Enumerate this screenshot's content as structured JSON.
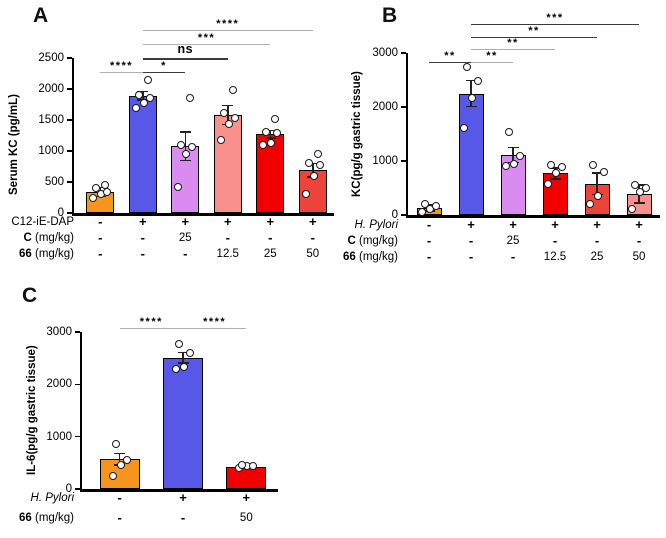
{
  "colors": {
    "background": "#FFFFFF",
    "axis": "#000000",
    "point_fill": "#FFFFFF",
    "point_stroke": "#1A1A1A",
    "error_bar": "#222222",
    "sig_light": "#B0B0B0",
    "sig_dark": "#3C3C3C"
  },
  "chart_data": [
    {
      "type": "bar",
      "panel_label": "A",
      "ylabel": "Serum KC (pg/mL)",
      "ylim": [
        0,
        2500
      ],
      "yticks": [
        0,
        500,
        1000,
        1500,
        2000,
        2500
      ],
      "bars": [
        {
          "value": 340,
          "error": 70,
          "color": "#F7941E",
          "points": [
            240,
            300,
            340,
            410,
            450
          ]
        },
        {
          "value": 1890,
          "error": 70,
          "color": "#5757E8",
          "points": [
            1700,
            1780,
            1860,
            1900,
            2150
          ]
        },
        {
          "value": 1080,
          "error": 230,
          "color": "#D98BEF",
          "points": [
            420,
            950,
            1060,
            1100,
            1860
          ]
        },
        {
          "value": 1580,
          "error": 150,
          "color": "#F9908C",
          "points": [
            1180,
            1440,
            1530,
            1620,
            1990
          ]
        },
        {
          "value": 1270,
          "error": 60,
          "color": "#F20000",
          "points": [
            1100,
            1130,
            1290,
            1310,
            1520
          ]
        },
        {
          "value": 690,
          "error": 110,
          "color": "#EE4338",
          "points": [
            300,
            590,
            780,
            810,
            950
          ]
        }
      ],
      "significance": [
        {
          "from": 0,
          "to": 1,
          "label": "****",
          "level": 4,
          "tone": "light"
        },
        {
          "from": 1,
          "to": 2,
          "label": "*",
          "level": 4,
          "tone": "dark"
        },
        {
          "from": 1,
          "to": 3,
          "label": "ns",
          "level": 3,
          "tone": "dark"
        },
        {
          "from": 1,
          "to": 4,
          "label": "***",
          "level": 2,
          "tone": "light"
        },
        {
          "from": 1,
          "to": 5,
          "label": "****",
          "level": 1,
          "tone": "light"
        }
      ],
      "xrows": [
        {
          "label_bold": "",
          "label": "C12-iE-DAP",
          "italic": false,
          "values": [
            "-",
            "+",
            "+",
            "+",
            "+",
            "+"
          ]
        },
        {
          "label_bold": "C",
          "label": " (mg/kg)",
          "italic": false,
          "values": [
            "-",
            "-",
            "25",
            "-",
            "-",
            "-"
          ]
        },
        {
          "label_bold": "66",
          "label": " (mg/kg)",
          "italic": false,
          "values": [
            "-",
            "-",
            "-",
            "12.5",
            "25",
            "50"
          ]
        }
      ]
    },
    {
      "type": "bar",
      "panel_label": "B",
      "ylabel": "KC(pg/g gastric tissue)",
      "ylim": [
        0,
        3000
      ],
      "yticks": [
        0,
        1000,
        2000,
        3000
      ],
      "bars": [
        {
          "value": 130,
          "error": 55,
          "color": "#F7941E",
          "points": [
            60,
            110,
            160,
            210
          ]
        },
        {
          "value": 2250,
          "error": 240,
          "color": "#5757E8",
          "points": [
            1610,
            2160,
            2480,
            2740
          ]
        },
        {
          "value": 1110,
          "error": 140,
          "color": "#D98BEF",
          "points": [
            900,
            950,
            1100,
            1530
          ]
        },
        {
          "value": 770,
          "error": 100,
          "color": "#F20000",
          "points": [
            570,
            780,
            890,
            930
          ]
        },
        {
          "value": 580,
          "error": 200,
          "color": "#EE4338",
          "points": [
            200,
            350,
            800,
            930
          ]
        },
        {
          "value": 390,
          "error": 170,
          "color": "#F9908C",
          "points": [
            110,
            430,
            500,
            560
          ]
        }
      ],
      "significance": [
        {
          "from": 0,
          "to": 1,
          "label": "**",
          "level": 4,
          "tone": "dark"
        },
        {
          "from": 1,
          "to": 2,
          "label": "**",
          "level": 4,
          "tone": "light"
        },
        {
          "from": 1,
          "to": 3,
          "label": "**",
          "level": 3,
          "tone": "light"
        },
        {
          "from": 1,
          "to": 4,
          "label": "**",
          "level": 2,
          "tone": "dark"
        },
        {
          "from": 1,
          "to": 5,
          "label": "***",
          "level": 1,
          "tone": "dark"
        }
      ],
      "xrows": [
        {
          "label_bold": "",
          "label": "H. Pylori",
          "italic": true,
          "values": [
            "-",
            "+",
            "+",
            "+",
            "+",
            "+"
          ]
        },
        {
          "label_bold": "C",
          "label": " (mg/kg)",
          "italic": false,
          "values": [
            "-",
            "-",
            "25",
            "-",
            "-",
            "-"
          ]
        },
        {
          "label_bold": "66",
          "label": " (mg/kg)",
          "italic": false,
          "values": [
            "-",
            "-",
            "-",
            "12.5",
            "25",
            "50"
          ]
        }
      ]
    },
    {
      "type": "bar",
      "panel_label": "C",
      "ylabel": "IL-6(pg/g gastric tissue)",
      "ylim": [
        0,
        3000
      ],
      "yticks": [
        0,
        1000,
        2000,
        3000
      ],
      "bars": [
        {
          "value": 570,
          "error": 110,
          "color": "#F7941E",
          "points": [
            250,
            450,
            560,
            860
          ]
        },
        {
          "value": 2510,
          "error": 100,
          "color": "#5757E8",
          "points": [
            2300,
            2330,
            2600,
            2770
          ]
        },
        {
          "value": 420,
          "error": 25,
          "color": "#F20000",
          "points": [
            395,
            430,
            445,
            455
          ]
        }
      ],
      "significance": [
        {
          "from": 0,
          "to": 1,
          "label": "****",
          "level": 1,
          "tone": "light"
        },
        {
          "from": 1,
          "to": 2,
          "label": "****",
          "level": 1,
          "tone": "light"
        }
      ],
      "xrows": [
        {
          "label_bold": "",
          "label": "H. Pylori",
          "italic": true,
          "values": [
            "-",
            "+",
            "+"
          ]
        },
        {
          "label_bold": "66",
          "label": " (mg/kg)",
          "italic": false,
          "values": [
            "-",
            "-",
            "50"
          ]
        }
      ]
    }
  ]
}
